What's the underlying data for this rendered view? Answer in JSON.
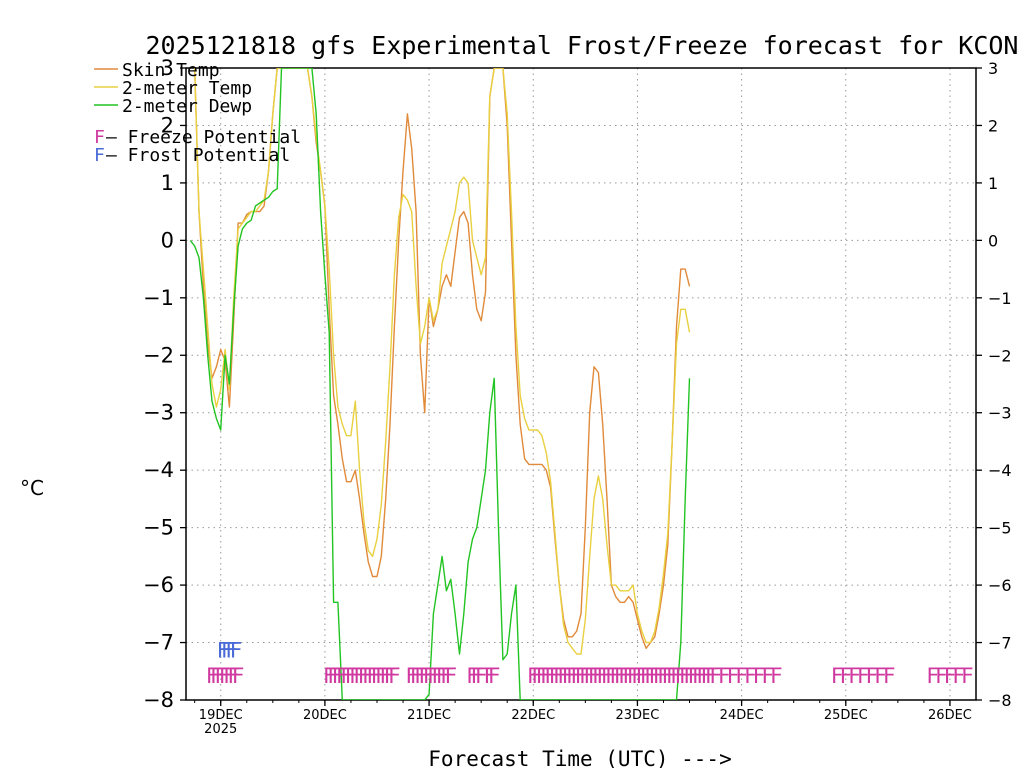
{
  "chart_data": {
    "type": "line",
    "title": "2025121818 gfs Experimental Frost/Freeze forecast for KCON",
    "xlabel": "Forecast Time (UTC) --->",
    "ylabel": "°C",
    "ylim": [
      -8,
      3
    ],
    "y_ticks": [
      3,
      2,
      1,
      0,
      -1,
      -2,
      -3,
      -4,
      -5,
      -6,
      -7,
      -8
    ],
    "y_tick_labels": [
      "3",
      "2",
      "1",
      "0",
      "−1",
      "−2",
      "−3",
      "−4",
      "−5",
      "−6",
      "−7",
      "−8"
    ],
    "x_range_hours": [
      -2,
      180
    ],
    "x_ticks": [
      {
        "hour": 6,
        "label": "19DEC",
        "sublabel": "2025"
      },
      {
        "hour": 30,
        "label": "20DEC",
        "sublabel": ""
      },
      {
        "hour": 54,
        "label": "21DEC",
        "sublabel": ""
      },
      {
        "hour": 78,
        "label": "22DEC",
        "sublabel": ""
      },
      {
        "hour": 102,
        "label": "23DEC",
        "sublabel": ""
      },
      {
        "hour": 126,
        "label": "24DEC",
        "sublabel": ""
      },
      {
        "hour": 150,
        "label": "25DEC",
        "sublabel": ""
      },
      {
        "hour": 174,
        "label": "26DEC",
        "sublabel": ""
      }
    ],
    "grid": true,
    "legend": [
      {
        "label": "Skin Temp",
        "color": "#e08a3a"
      },
      {
        "label": "2-meter Temp",
        "color": "#e8d040"
      },
      {
        "label": "2-meter Dewp",
        "color": "#22c422"
      }
    ],
    "potential_legend": [
      {
        "marker": "F",
        "label": " – Freeze Potential",
        "color": "#d03aa0"
      },
      {
        "marker": "F",
        "label": " – Frost Potential",
        "color": "#4a6ad8"
      }
    ],
    "series": [
      {
        "name": "Skin Temp",
        "color": "#e08a3a",
        "points": [
          [
            0,
            3
          ],
          [
            1,
            0.5
          ],
          [
            2,
            -0.8
          ],
          [
            3,
            -1.8
          ],
          [
            4,
            -2.4
          ],
          [
            5,
            -2.2
          ],
          [
            6,
            -1.9
          ],
          [
            7,
            -2.1
          ],
          [
            8,
            -2.9
          ],
          [
            9,
            -1.4
          ],
          [
            10,
            0.3
          ],
          [
            11,
            0.3
          ],
          [
            12,
            0.45
          ],
          [
            13,
            0.5
          ],
          [
            14,
            0.5
          ],
          [
            15,
            0.5
          ],
          [
            16,
            0.6
          ],
          [
            17,
            1.2
          ],
          [
            18,
            2.2
          ],
          [
            19,
            3
          ],
          [
            26,
            3
          ],
          [
            27,
            2.5
          ],
          [
            28,
            1.7
          ],
          [
            29,
            1.2
          ],
          [
            30,
            0.6
          ],
          [
            31,
            -1.2
          ],
          [
            32,
            -2.7
          ],
          [
            33,
            -3.2
          ],
          [
            34,
            -3.8
          ],
          [
            35,
            -4.2
          ],
          [
            36,
            -4.2
          ],
          [
            37,
            -4
          ],
          [
            38,
            -4.5
          ],
          [
            39,
            -5.1
          ],
          [
            40,
            -5.6
          ],
          [
            41,
            -5.85
          ],
          [
            42,
            -5.85
          ],
          [
            43,
            -5.5
          ],
          [
            44,
            -4.5
          ],
          [
            45,
            -3.2
          ],
          [
            46,
            -1.5
          ],
          [
            47,
            0
          ],
          [
            48,
            1.2
          ],
          [
            49,
            2.2
          ],
          [
            50,
            1.6
          ],
          [
            51,
            0.5
          ],
          [
            52,
            -2
          ],
          [
            53,
            -3
          ],
          [
            54,
            -1
          ],
          [
            55,
            -1.5
          ],
          [
            56,
            -1.2
          ],
          [
            57,
            -0.8
          ],
          [
            58,
            -0.6
          ],
          [
            59,
            -0.8
          ],
          [
            60,
            -0.2
          ],
          [
            61,
            0.4
          ],
          [
            62,
            0.5
          ],
          [
            63,
            0.3
          ],
          [
            64,
            -0.6
          ],
          [
            65,
            -1.2
          ],
          [
            66,
            -1.4
          ],
          [
            67,
            -0.9
          ],
          [
            68,
            2.5
          ],
          [
            69,
            3
          ],
          [
            71,
            3
          ],
          [
            72,
            2
          ],
          [
            73,
            0
          ],
          [
            74,
            -2
          ],
          [
            75,
            -3.2
          ],
          [
            76,
            -3.8
          ],
          [
            77,
            -3.9
          ],
          [
            78,
            -3.9
          ],
          [
            79,
            -3.9
          ],
          [
            80,
            -3.9
          ],
          [
            81,
            -4
          ],
          [
            82,
            -4.3
          ],
          [
            83,
            -5.2
          ],
          [
            84,
            -6
          ],
          [
            85,
            -6.6
          ],
          [
            86,
            -6.9
          ],
          [
            87,
            -6.9
          ],
          [
            88,
            -6.8
          ],
          [
            89,
            -6.5
          ],
          [
            90,
            -5
          ],
          [
            91,
            -3
          ],
          [
            92,
            -2.2
          ],
          [
            93,
            -2.3
          ],
          [
            94,
            -3.2
          ],
          [
            95,
            -4.5
          ],
          [
            96,
            -6
          ],
          [
            97,
            -6.2
          ],
          [
            98,
            -6.3
          ],
          [
            99,
            -6.3
          ],
          [
            100,
            -6.2
          ],
          [
            101,
            -6.3
          ],
          [
            102,
            -6.6
          ],
          [
            103,
            -6.9
          ],
          [
            104,
            -7.1
          ],
          [
            105,
            -7
          ],
          [
            106,
            -6.9
          ],
          [
            107,
            -6.5
          ],
          [
            108,
            -6
          ],
          [
            109,
            -5.3
          ],
          [
            110,
            -3.5
          ],
          [
            111,
            -1.5
          ],
          [
            112,
            -0.5
          ],
          [
            113,
            -0.5
          ],
          [
            114,
            -0.8
          ]
        ]
      },
      {
        "name": "2-meter Temp",
        "color": "#e8d040",
        "points": [
          [
            0,
            3
          ],
          [
            1,
            0.5
          ],
          [
            2,
            -0.5
          ],
          [
            3,
            -1.5
          ],
          [
            4,
            -2.5
          ],
          [
            5,
            -2.9
          ],
          [
            6,
            -2.6
          ],
          [
            7,
            -1.9
          ],
          [
            8,
            -2.6
          ],
          [
            9,
            -1
          ],
          [
            10,
            0.2
          ],
          [
            11,
            0.3
          ],
          [
            12,
            0.4
          ],
          [
            13,
            0.5
          ],
          [
            14,
            0.5
          ],
          [
            15,
            0.6
          ],
          [
            16,
            0.7
          ],
          [
            17,
            1.2
          ],
          [
            18,
            2.2
          ],
          [
            19,
            3
          ],
          [
            26,
            3
          ],
          [
            27,
            2.5
          ],
          [
            28,
            1.8
          ],
          [
            29,
            1.2
          ],
          [
            30,
            0.6
          ],
          [
            31,
            -0.5
          ],
          [
            32,
            -2
          ],
          [
            33,
            -2.9
          ],
          [
            34,
            -3.2
          ],
          [
            35,
            -3.4
          ],
          [
            36,
            -3.4
          ],
          [
            37,
            -2.8
          ],
          [
            38,
            -4
          ],
          [
            39,
            -4.9
          ],
          [
            40,
            -5.4
          ],
          [
            41,
            -5.5
          ],
          [
            42,
            -5.2
          ],
          [
            43,
            -4.6
          ],
          [
            44,
            -3.5
          ],
          [
            45,
            -2.2
          ],
          [
            46,
            -0.6
          ],
          [
            47,
            0.4
          ],
          [
            48,
            0.8
          ],
          [
            49,
            0.7
          ],
          [
            50,
            0.5
          ],
          [
            51,
            -0.8
          ],
          [
            52,
            -1.8
          ],
          [
            53,
            -1.5
          ],
          [
            54,
            -1
          ],
          [
            55,
            -1.4
          ],
          [
            56,
            -1.2
          ],
          [
            57,
            -0.4
          ],
          [
            58,
            -0.1
          ],
          [
            59,
            0.2
          ],
          [
            60,
            0.5
          ],
          [
            61,
            1
          ],
          [
            62,
            1.1
          ],
          [
            63,
            1
          ],
          [
            64,
            0
          ],
          [
            65,
            -0.3
          ],
          [
            66,
            -0.6
          ],
          [
            67,
            -0.3
          ],
          [
            68,
            2.5
          ],
          [
            69,
            3
          ],
          [
            71,
            3
          ],
          [
            72,
            2.2
          ],
          [
            73,
            0.5
          ],
          [
            74,
            -1.5
          ],
          [
            75,
            -2.7
          ],
          [
            76,
            -3.1
          ],
          [
            77,
            -3.3
          ],
          [
            78,
            -3.3
          ],
          [
            79,
            -3.3
          ],
          [
            80,
            -3.4
          ],
          [
            81,
            -3.7
          ],
          [
            82,
            -4.2
          ],
          [
            83,
            -5.1
          ],
          [
            84,
            -6
          ],
          [
            85,
            -6.7
          ],
          [
            86,
            -7
          ],
          [
            87,
            -7.1
          ],
          [
            88,
            -7.2
          ],
          [
            89,
            -7.2
          ],
          [
            90,
            -6.6
          ],
          [
            91,
            -5.5
          ],
          [
            92,
            -4.5
          ],
          [
            93,
            -4.1
          ],
          [
            94,
            -4.5
          ],
          [
            95,
            -5.3
          ],
          [
            96,
            -6
          ],
          [
            97,
            -6
          ],
          [
            98,
            -6.1
          ],
          [
            99,
            -6.1
          ],
          [
            100,
            -6.1
          ],
          [
            101,
            -6
          ],
          [
            102,
            -6.5
          ],
          [
            103,
            -6.8
          ],
          [
            104,
            -7
          ],
          [
            105,
            -7
          ],
          [
            106,
            -6.8
          ],
          [
            107,
            -6.4
          ],
          [
            108,
            -5.8
          ],
          [
            109,
            -5.1
          ],
          [
            110,
            -3.5
          ],
          [
            111,
            -1.8
          ],
          [
            112,
            -1.2
          ],
          [
            113,
            -1.2
          ],
          [
            114,
            -1.6
          ]
        ]
      },
      {
        "name": "2-meter Dewp",
        "color": "#22c422",
        "points": [
          [
            -1,
            0
          ],
          [
            0,
            -0.1
          ],
          [
            1,
            -0.3
          ],
          [
            2,
            -1
          ],
          [
            3,
            -2
          ],
          [
            4,
            -2.8
          ],
          [
            5,
            -3.1
          ],
          [
            6,
            -3.3
          ],
          [
            7,
            -2
          ],
          [
            8,
            -2.5
          ],
          [
            9,
            -1.2
          ],
          [
            10,
            -0.1
          ],
          [
            11,
            0.2
          ],
          [
            12,
            0.3
          ],
          [
            13,
            0.35
          ],
          [
            14,
            0.6
          ],
          [
            15,
            0.65
          ],
          [
            16,
            0.7
          ],
          [
            17,
            0.75
          ],
          [
            18,
            0.85
          ],
          [
            19,
            0.9
          ],
          [
            20,
            3
          ],
          [
            27,
            3
          ],
          [
            28,
            2.2
          ],
          [
            29,
            0.5
          ],
          [
            30,
            -0.6
          ],
          [
            31,
            -1.6
          ],
          [
            32,
            -6.3
          ],
          [
            33,
            -6.3
          ],
          [
            34,
            -8
          ],
          [
            35,
            -8
          ],
          [
            50,
            -8
          ],
          [
            51,
            -8
          ],
          [
            52,
            -8
          ],
          [
            53,
            -8
          ],
          [
            54,
            -7.9
          ],
          [
            55,
            -6.5
          ],
          [
            56,
            -6
          ],
          [
            57,
            -5.5
          ],
          [
            58,
            -6.1
          ],
          [
            59,
            -5.9
          ],
          [
            60,
            -6.5
          ],
          [
            61,
            -7.2
          ],
          [
            62,
            -6.5
          ],
          [
            63,
            -5.6
          ],
          [
            64,
            -5.2
          ],
          [
            65,
            -5
          ],
          [
            66,
            -4.5
          ],
          [
            67,
            -4
          ],
          [
            68,
            -3
          ],
          [
            69,
            -2.4
          ],
          [
            70,
            -5
          ],
          [
            71,
            -7.3
          ],
          [
            72,
            -7.2
          ],
          [
            73,
            -6.5
          ],
          [
            74,
            -6
          ],
          [
            75,
            -8
          ],
          [
            76,
            -8
          ],
          [
            111,
            -8
          ],
          [
            112,
            -7
          ],
          [
            113,
            -4.5
          ],
          [
            114,
            -2.4
          ]
        ]
      }
    ],
    "frost_markers": {
      "marker": "F",
      "color": "#4a6ad8",
      "value": -7.1,
      "hours": [
        6.5,
        7.5,
        8.5,
        9.5
      ]
    },
    "freeze_markers": {
      "marker": "F",
      "color": "#d03aa0",
      "value": -7.55,
      "hours": [
        4,
        5,
        6,
        7,
        8,
        9,
        10,
        31,
        32,
        33,
        34,
        35,
        36,
        37,
        38,
        39,
        40,
        41,
        42,
        43,
        44,
        45,
        46,
        50,
        51,
        52,
        53,
        54,
        55,
        56,
        57,
        58,
        59,
        64,
        65,
        66,
        68,
        69,
        78,
        79,
        80,
        81,
        82,
        83,
        84,
        85,
        86,
        87,
        88,
        89,
        90,
        91,
        92,
        93,
        94,
        95,
        96,
        97,
        98,
        99,
        100,
        101,
        102,
        103,
        104,
        105,
        106,
        107,
        108,
        109,
        110,
        111,
        112,
        113,
        114,
        115,
        116,
        117,
        118,
        119,
        120,
        122,
        124,
        126,
        128,
        130,
        132,
        134,
        148,
        150,
        152,
        154,
        156,
        158,
        160,
        170,
        172,
        174,
        176,
        178
      ]
    }
  }
}
